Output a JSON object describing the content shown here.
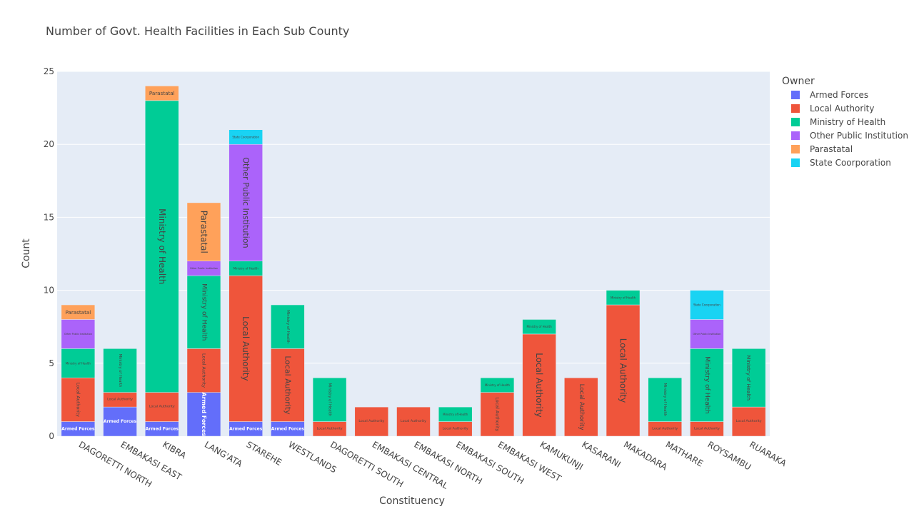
{
  "chart_data": {
    "type": "bar",
    "barmode": "stack",
    "title": "Number of Govt. Health Facilities in Each Sub County",
    "xlabel": "Constituency",
    "ylabel": "Count",
    "ylim": [
      0,
      25
    ],
    "yticks": [
      0,
      5,
      10,
      15,
      20,
      25
    ],
    "grid": true,
    "legend_title": "Owner",
    "legend_position": "right",
    "categories": [
      "DAGORETTI NORTH",
      "EMBAKASI EAST",
      "KIBRA",
      "LANG'ATA",
      "STAREHE",
      "WESTLANDS",
      "DAGORETTI SOUTH",
      "EMBAKASI CENTRAL",
      "EMBAKASI NORTH",
      "EMBAKASI SOUTH",
      "EMBAKASI WEST",
      "KAMUKUNJI",
      "KASARANI",
      "MAKADARA",
      "MATHARE",
      "ROYSAMBU",
      "RUARAKA"
    ],
    "series": [
      {
        "name": "Armed Forces",
        "color": "#636efa",
        "values": [
          1,
          2,
          1,
          3,
          1,
          1,
          0,
          0,
          0,
          0,
          0,
          0,
          0,
          0,
          0,
          0,
          0
        ]
      },
      {
        "name": "Local Authority",
        "color": "#ef553b",
        "values": [
          3,
          1,
          2,
          3,
          10,
          5,
          1,
          2,
          2,
          1,
          3,
          7,
          4,
          9,
          1,
          1,
          2
        ]
      },
      {
        "name": "Ministry of Health",
        "color": "#00cc96",
        "values": [
          2,
          3,
          20,
          5,
          1,
          3,
          3,
          0,
          0,
          1,
          1,
          1,
          0,
          1,
          3,
          5,
          4
        ]
      },
      {
        "name": "Other Public Institution",
        "color": "#ab63fa",
        "values": [
          2,
          0,
          0,
          1,
          8,
          0,
          0,
          0,
          0,
          0,
          0,
          0,
          0,
          0,
          0,
          2,
          0
        ]
      },
      {
        "name": "Parastatal",
        "color": "#ffa15a",
        "values": [
          1,
          0,
          1,
          4,
          0,
          0,
          0,
          0,
          0,
          0,
          0,
          0,
          0,
          0,
          0,
          0,
          0
        ]
      },
      {
        "name": "State Coorporation",
        "color": "#19d3f3",
        "values": [
          0,
          0,
          0,
          0,
          1,
          0,
          0,
          0,
          0,
          0,
          0,
          0,
          0,
          0,
          0,
          2,
          0
        ]
      }
    ]
  }
}
